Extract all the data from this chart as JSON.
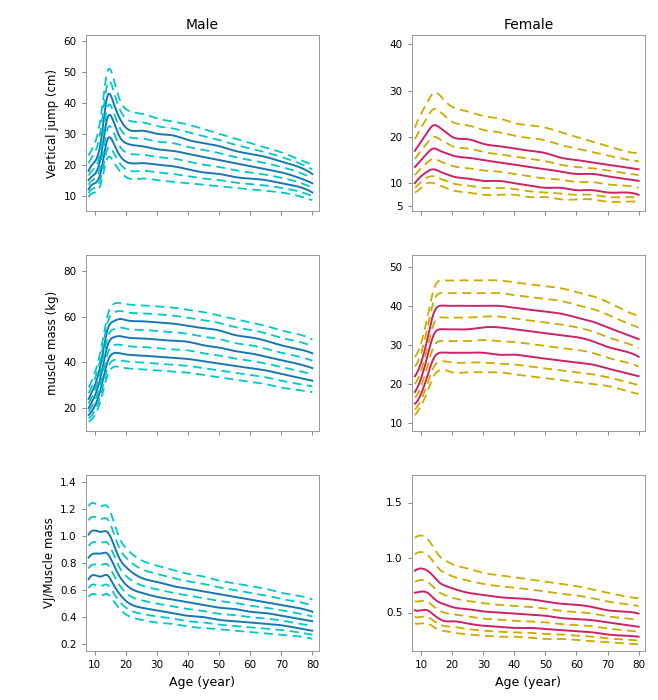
{
  "male_col": "#1777b4",
  "male_dash_col": "#00c8c8",
  "female_col": "#cc2266",
  "female_dash_col": "#ccaa00",
  "age": [
    8,
    10,
    12,
    14,
    16,
    18,
    20,
    25,
    30,
    35,
    40,
    45,
    50,
    55,
    60,
    65,
    70,
    75,
    80
  ],
  "m_vj_p10": [
    9.5,
    11,
    14,
    22,
    21,
    18,
    16,
    15.5,
    15,
    14.5,
    14,
    13.5,
    13,
    12.5,
    12,
    11.5,
    11,
    10,
    8.5
  ],
  "m_vj_p25": [
    12,
    14,
    18,
    28,
    27,
    23,
    21,
    20.5,
    20,
    19.5,
    18.5,
    17.5,
    17,
    16,
    15.5,
    15,
    14,
    13,
    11
  ],
  "m_vj_p50": [
    15,
    17,
    23,
    35,
    34,
    29,
    27,
    26,
    25,
    24.5,
    23.5,
    22.5,
    21.5,
    20.5,
    19.5,
    18.5,
    17.5,
    16,
    14
  ],
  "m_vj_p75": [
    18,
    21,
    28,
    42,
    40,
    35,
    32,
    31,
    30,
    29.5,
    28,
    27,
    26,
    24.5,
    23.5,
    22.5,
    21,
    19.5,
    17
  ],
  "m_vj_p90": [
    23,
    27,
    36,
    50,
    48,
    41,
    38,
    36.5,
    35,
    34,
    33,
    31.5,
    30,
    28.5,
    27,
    25.5,
    24,
    22,
    20
  ],
  "f_vj_p10": [
    8,
    9,
    10,
    10,
    9.5,
    9,
    8.5,
    8,
    7.5,
    7.5,
    7.5,
    7,
    7,
    6.5,
    6.5,
    6.5,
    6,
    6,
    6
  ],
  "f_vj_p25": [
    10,
    11.5,
    12.5,
    13,
    12.5,
    12,
    11.5,
    11,
    10.5,
    10.5,
    10,
    9.5,
    9,
    9,
    8.5,
    8.5,
    8,
    8,
    7.5
  ],
  "f_vj_p50": [
    13.5,
    15,
    16.5,
    17.5,
    17,
    16.5,
    16,
    15.5,
    15,
    14.5,
    14,
    13.5,
    13,
    12.5,
    12,
    12,
    11.5,
    11,
    10.5
  ],
  "f_vj_p75": [
    17,
    19,
    21,
    22.5,
    22,
    21,
    20,
    19.5,
    18.5,
    18,
    17.5,
    17,
    16.5,
    15.5,
    15,
    14.5,
    14,
    13.5,
    13
  ],
  "f_vj_p90": [
    22,
    25,
    27.5,
    29.5,
    29,
    27.5,
    26.5,
    25.5,
    24.5,
    24,
    23,
    22.5,
    22,
    21,
    20,
    19,
    18,
    17,
    16.5
  ],
  "m_mm_p10": [
    14,
    17,
    24,
    34,
    38,
    38,
    37.5,
    37,
    36.5,
    36,
    35.5,
    34.5,
    33.5,
    32.5,
    31.5,
    30.5,
    29,
    28,
    27
  ],
  "m_mm_p25": [
    17,
    21,
    29,
    40,
    44,
    44,
    43.5,
    43,
    42.5,
    42,
    41.5,
    40.5,
    39.5,
    38.5,
    37.5,
    36.5,
    35,
    33.5,
    32
  ],
  "m_mm_p50": [
    20,
    25.5,
    34.5,
    47,
    51,
    51.5,
    51,
    50.5,
    50,
    49.5,
    49,
    47.5,
    46.5,
    45,
    44,
    42.5,
    41,
    39.5,
    37.5
  ],
  "m_mm_p75": [
    24,
    30,
    40,
    54,
    58,
    59,
    58.5,
    58,
    57.5,
    57,
    56,
    55,
    54,
    52,
    51,
    49.5,
    47.5,
    46,
    44
  ],
  "m_mm_p90": [
    29,
    35.5,
    46,
    60,
    65.5,
    66,
    65.5,
    65,
    64.5,
    64,
    63,
    62,
    60.5,
    59,
    57.5,
    56,
    54,
    52.5,
    50
  ],
  "f_mm_p10": [
    12,
    14.5,
    18,
    22,
    23.5,
    23.5,
    23,
    23,
    23,
    23,
    22.5,
    22,
    21.5,
    21,
    20.5,
    20,
    19.5,
    18.5,
    17.5
  ],
  "f_mm_p25": [
    15,
    17.5,
    22,
    26.5,
    28,
    28,
    28,
    28,
    28,
    27.5,
    27.5,
    27,
    26.5,
    26,
    25.5,
    25,
    24,
    23,
    22
  ],
  "f_mm_p50": [
    18,
    21.5,
    27,
    32.5,
    34,
    34,
    34,
    34,
    34.5,
    34.5,
    34,
    33.5,
    33,
    32.5,
    32,
    31,
    29.5,
    28.5,
    27
  ],
  "f_mm_p75": [
    22,
    25.5,
    31.5,
    38,
    40,
    40,
    40,
    40,
    40,
    40,
    39.5,
    39,
    38.5,
    38,
    37,
    36,
    34.5,
    33,
    31.5
  ],
  "f_mm_p90": [
    27,
    30.5,
    37,
    44,
    46.5,
    46.5,
    46.5,
    46.5,
    46.5,
    46.5,
    46,
    45.5,
    45,
    44.5,
    43.5,
    42.5,
    41,
    39,
    37.5
  ],
  "m_ratio_p10": [
    0.55,
    0.57,
    0.56,
    0.57,
    0.52,
    0.46,
    0.42,
    0.38,
    0.36,
    0.35,
    0.33,
    0.32,
    0.31,
    0.3,
    0.29,
    0.28,
    0.27,
    0.26,
    0.24
  ],
  "m_ratio_p25": [
    0.68,
    0.71,
    0.7,
    0.71,
    0.64,
    0.57,
    0.52,
    0.47,
    0.45,
    0.43,
    0.41,
    0.4,
    0.38,
    0.37,
    0.36,
    0.35,
    0.34,
    0.32,
    0.3
  ],
  "m_ratio_p50": [
    0.84,
    0.87,
    0.87,
    0.87,
    0.79,
    0.7,
    0.64,
    0.58,
    0.55,
    0.53,
    0.51,
    0.49,
    0.47,
    0.46,
    0.44,
    0.43,
    0.41,
    0.39,
    0.37
  ],
  "m_ratio_p75": [
    1.01,
    1.04,
    1.03,
    1.03,
    0.94,
    0.83,
    0.77,
    0.69,
    0.66,
    0.63,
    0.61,
    0.59,
    0.57,
    0.55,
    0.53,
    0.51,
    0.49,
    0.47,
    0.44
  ],
  "m_ratio_p90": [
    1.22,
    1.24,
    1.22,
    1.22,
    1.11,
    0.98,
    0.91,
    0.82,
    0.78,
    0.75,
    0.72,
    0.7,
    0.67,
    0.65,
    0.63,
    0.61,
    0.58,
    0.56,
    0.53
  ],
  "f_ratio_p10": [
    0.4,
    0.4,
    0.4,
    0.37,
    0.34,
    0.33,
    0.32,
    0.3,
    0.29,
    0.28,
    0.28,
    0.27,
    0.26,
    0.26,
    0.25,
    0.24,
    0.23,
    0.22,
    0.21
  ],
  "f_ratio_p25": [
    0.52,
    0.52,
    0.52,
    0.48,
    0.44,
    0.42,
    0.42,
    0.4,
    0.38,
    0.37,
    0.36,
    0.36,
    0.35,
    0.34,
    0.33,
    0.32,
    0.3,
    0.29,
    0.28
  ],
  "f_ratio_p50": [
    0.68,
    0.69,
    0.68,
    0.63,
    0.59,
    0.57,
    0.55,
    0.53,
    0.51,
    0.5,
    0.49,
    0.48,
    0.47,
    0.45,
    0.44,
    0.43,
    0.41,
    0.39,
    0.37
  ],
  "f_ratio_p75": [
    0.88,
    0.9,
    0.88,
    0.83,
    0.77,
    0.74,
    0.72,
    0.68,
    0.66,
    0.64,
    0.63,
    0.62,
    0.6,
    0.58,
    0.57,
    0.55,
    0.52,
    0.51,
    0.49
  ],
  "f_ratio_p90": [
    1.18,
    1.2,
    1.17,
    1.09,
    1.01,
    0.97,
    0.94,
    0.9,
    0.86,
    0.84,
    0.82,
    0.8,
    0.78,
    0.76,
    0.74,
    0.71,
    0.68,
    0.65,
    0.63
  ],
  "m_vj_ylim": [
    5,
    62
  ],
  "m_vj_yticks": [
    10,
    20,
    30,
    40,
    50,
    60
  ],
  "f_vj_ylim": [
    4,
    42
  ],
  "f_vj_yticks": [
    5,
    10,
    20,
    30,
    40
  ],
  "m_mm_ylim": [
    10,
    87
  ],
  "m_mm_yticks": [
    20,
    40,
    60,
    80
  ],
  "f_mm_ylim": [
    8,
    53
  ],
  "f_mm_yticks": [
    10,
    20,
    30,
    40,
    50
  ],
  "m_ratio_ylim": [
    0.15,
    1.45
  ],
  "m_ratio_yticks": [
    0.2,
    0.4,
    0.6,
    0.8,
    1.0,
    1.2,
    1.4
  ],
  "f_ratio_ylim": [
    0.15,
    1.75
  ],
  "f_ratio_yticks": [
    0.5,
    1.0,
    1.5
  ],
  "xlim": [
    7,
    82
  ],
  "xticks": [
    10,
    20,
    30,
    40,
    50,
    60,
    70,
    80
  ],
  "title_male": "Male",
  "title_female": "Female",
  "ylabel_vj": "Vertical jump (cm)",
  "ylabel_mm": "muscle mass (kg)",
  "ylabel_ratio": "VJ/Muscle mass",
  "xlabel": "Age (year)"
}
